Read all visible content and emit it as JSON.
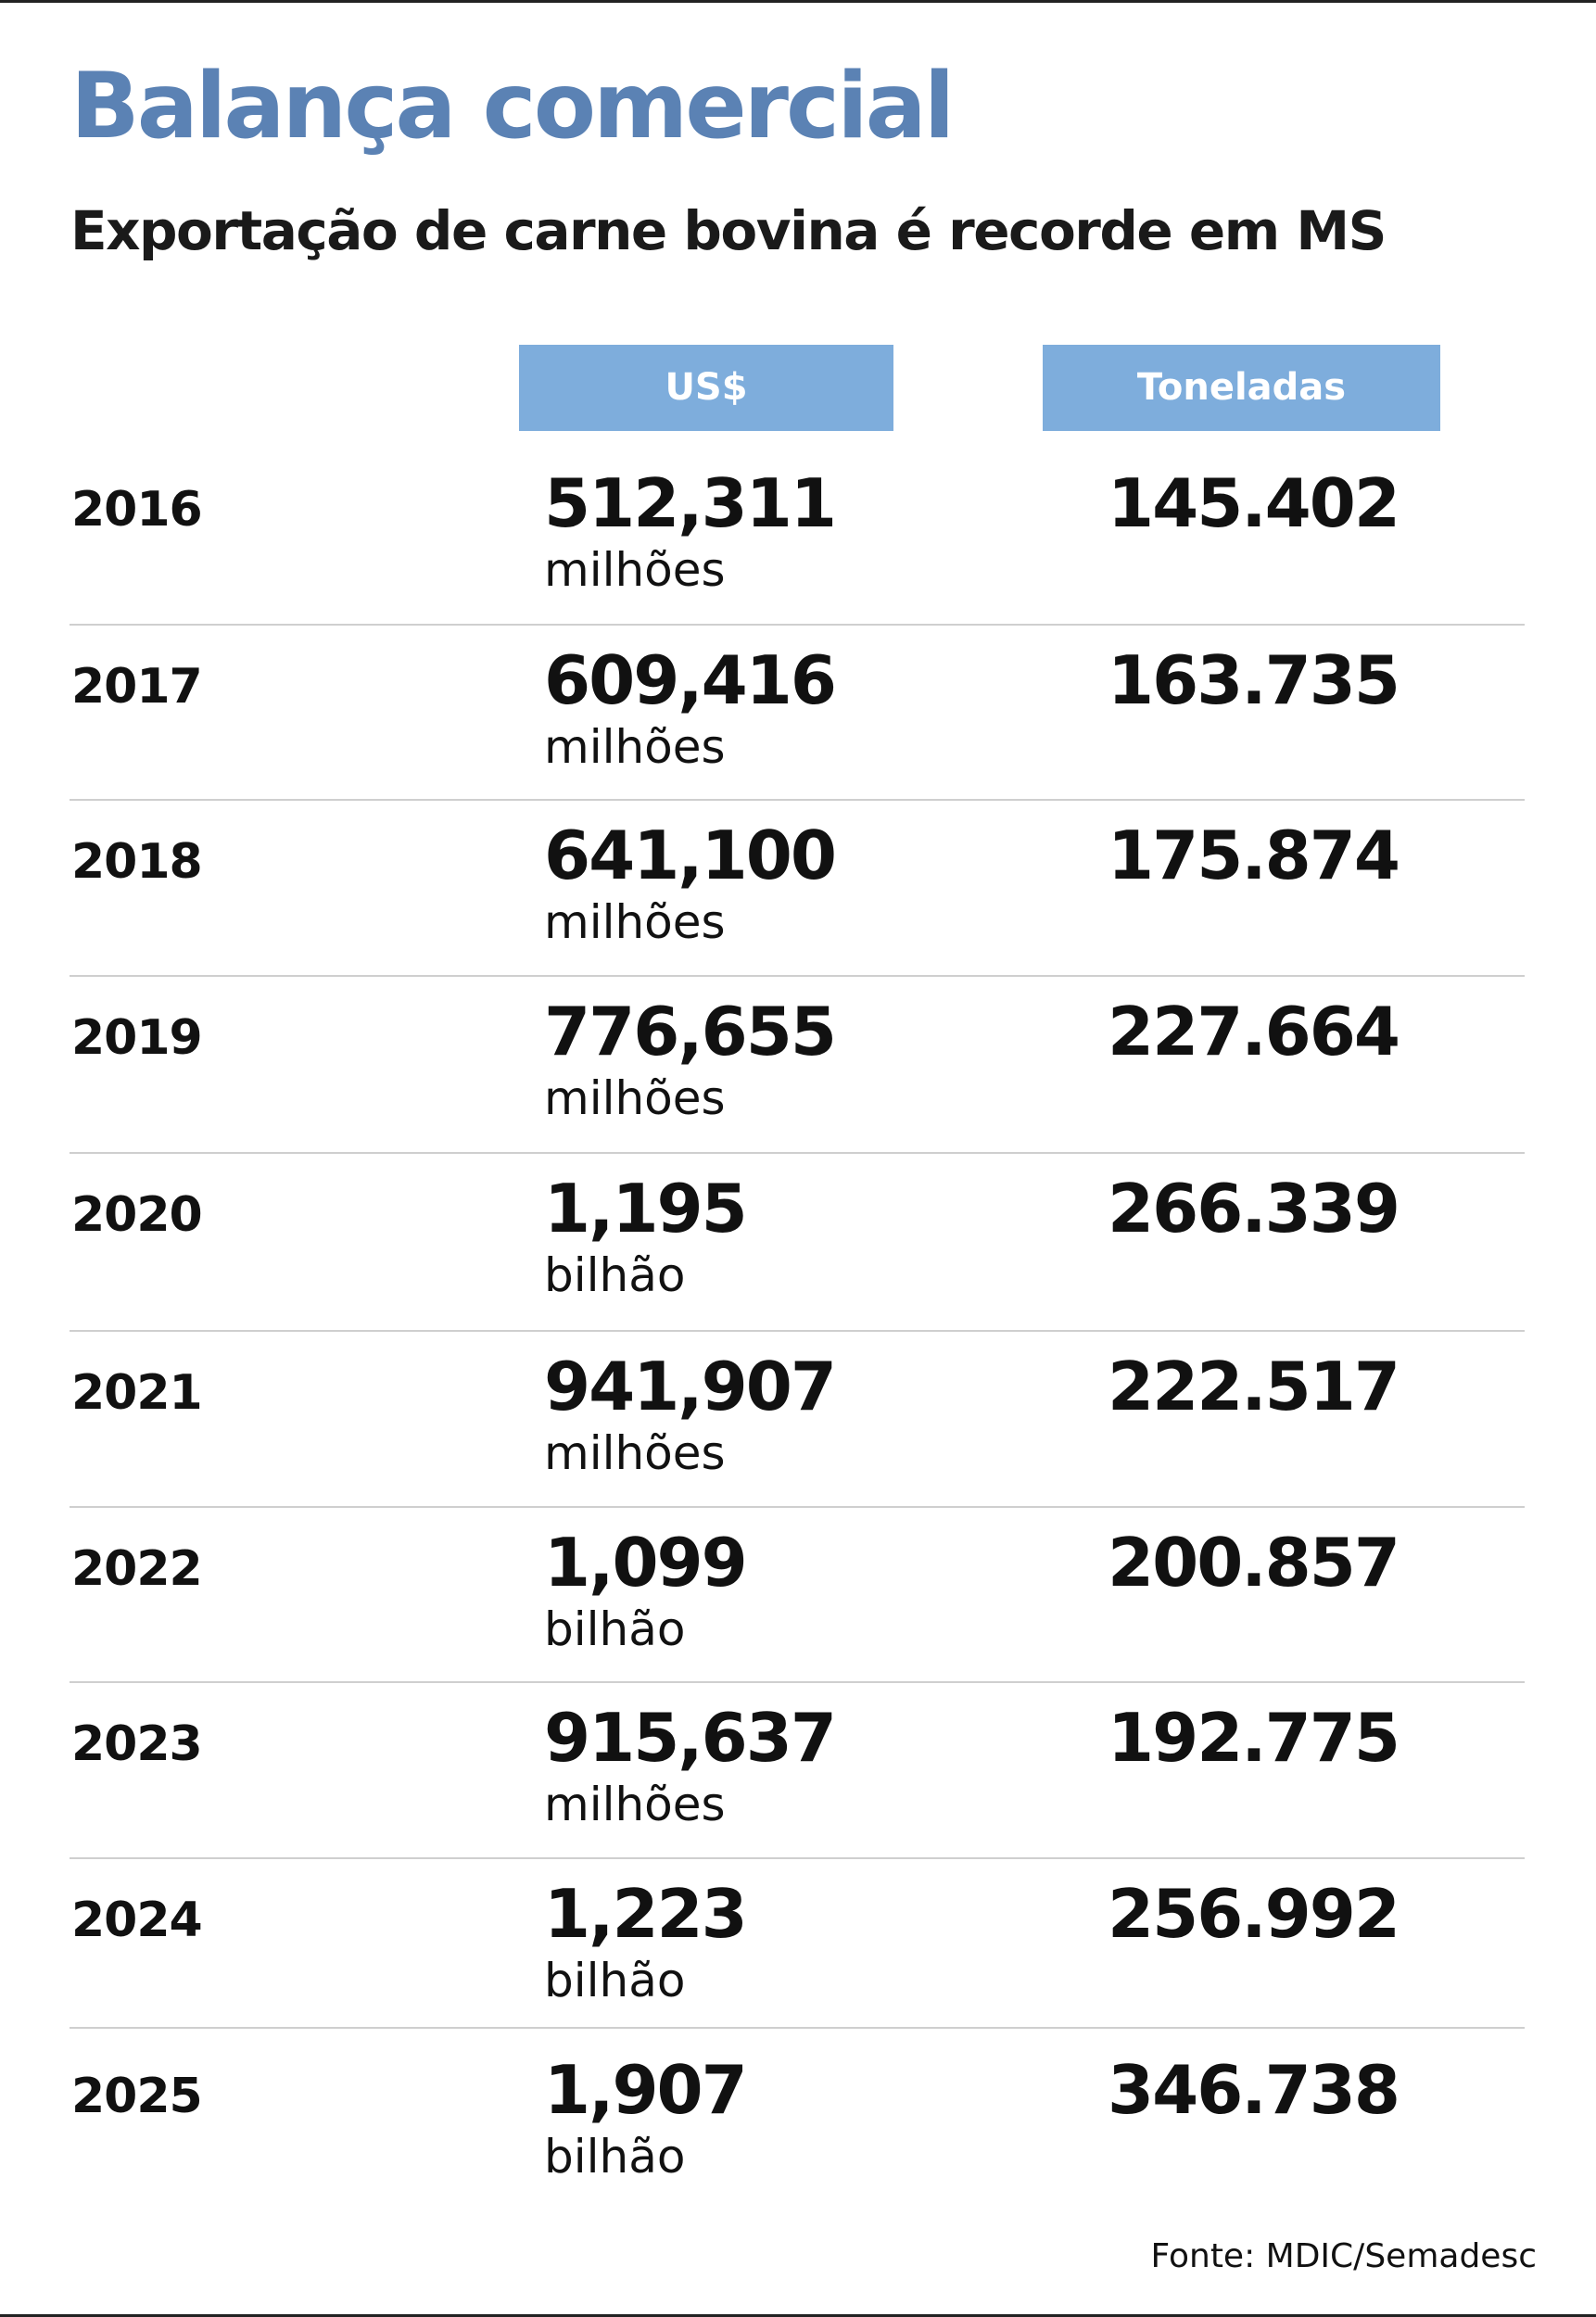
{
  "title": "Balança comercial",
  "subtitle": "Exportação de carne bovina é recorde em MS",
  "source": "Fonte: MDIC/Semadesc",
  "colors": {
    "title": "#5b82b4",
    "header_bg": "#7eaddc",
    "header_text": "#ffffff",
    "divider": "#cfcfcf"
  },
  "chart_data": {
    "type": "table",
    "title": "Balança comercial",
    "subtitle": "Exportação de carne bovina é recorde em MS",
    "columns": [
      "",
      "US$",
      "Toneladas"
    ],
    "rows": [
      {
        "year": "2016",
        "usd": "512,311",
        "usd_unit": "milhões",
        "tons": "145.402"
      },
      {
        "year": "2017",
        "usd": "609,416",
        "usd_unit": "milhões",
        "tons": "163.735"
      },
      {
        "year": "2018",
        "usd": "641,100",
        "usd_unit": "milhões",
        "tons": "175.874"
      },
      {
        "year": "2019",
        "usd": "776,655",
        "usd_unit": "milhões",
        "tons": "227.664"
      },
      {
        "year": "2020",
        "usd": "1,195",
        "usd_unit": "bilhão",
        "tons": "266.339"
      },
      {
        "year": "2021",
        "usd": "941,907",
        "usd_unit": "milhões",
        "tons": "222.517"
      },
      {
        "year": "2022",
        "usd": "1,099",
        "usd_unit": "bilhão",
        "tons": "200.857"
      },
      {
        "year": "2023",
        "usd": "915,637",
        "usd_unit": "milhões",
        "tons": "192.775"
      },
      {
        "year": "2024",
        "usd": "1,223",
        "usd_unit": "bilhão",
        "tons": "256.992"
      },
      {
        "year": "2025",
        "usd": "1,907",
        "usd_unit": "bilhão",
        "tons": "346.738"
      }
    ],
    "source": "Fonte: MDIC/Semadesc"
  }
}
